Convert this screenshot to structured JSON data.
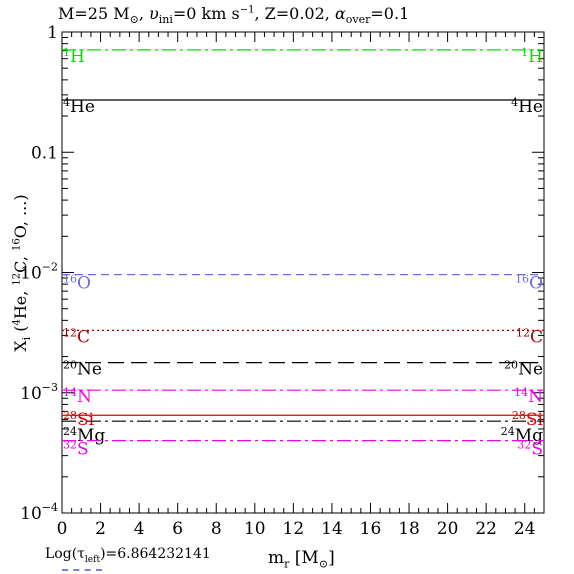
{
  "title": {
    "mass_text": "M=25 M",
    "sun_symbol": "⊙",
    "vel_text": ",  ",
    "v_symbol": "υ",
    "v_sub": "ini",
    "v_val": "=0 km s",
    "v_exp": "−1",
    "z_text": ", Z=0.02, ",
    "alpha_symbol": "α",
    "alpha_sub": "over",
    "alpha_val": "=0.1"
  },
  "footnote": {
    "prefix": "Log(τ",
    "sub": "left",
    "suffix": ")=6.864232141"
  },
  "axes": {
    "xlabel_main": "m",
    "xlabel_sub": "r",
    "xlabel_unit_open": " [M",
    "xlabel_unit_sym": "⊙",
    "xlabel_unit_close": "]",
    "ylabel_X": "X",
    "ylabel_sub": "i",
    "ylabel_open": " (",
    "ylabel_he_sup": "4",
    "ylabel_he": "He, ",
    "ylabel_c_sup": "12",
    "ylabel_c": "C, ",
    "ylabel_o_sup": "16",
    "ylabel_o": "O, ...)"
  },
  "chart_data": {
    "type": "line",
    "x_range": [
      0,
      25
    ],
    "y_range": [
      0.0001,
      1
    ],
    "y_scale": "log",
    "x_ticks": [
      "0",
      "2",
      "4",
      "6",
      "8",
      "10",
      "12",
      "14",
      "16",
      "18",
      "20",
      "22",
      "24"
    ],
    "x_tick_values": [
      0,
      2,
      4,
      6,
      8,
      10,
      12,
      14,
      16,
      18,
      20,
      22,
      24
    ],
    "y_tick_labels": [
      {
        "value": 1,
        "base": "1",
        "exp": ""
      },
      {
        "value": 0.1,
        "base": "0.1",
        "exp": ""
      },
      {
        "value": 0.01,
        "base": "10",
        "exp": "−2"
      },
      {
        "value": 0.001,
        "base": "10",
        "exp": "−3"
      },
      {
        "value": 0.0001,
        "base": "10",
        "exp": "−4"
      }
    ],
    "series": [
      {
        "name": "H",
        "mass_number": "1",
        "value": 0.71,
        "color": "#00dd00",
        "dash": "14 4 3 4",
        "label_offset": 4
      },
      {
        "name": "He",
        "mass_number": "4",
        "value": 0.272,
        "color": "#000000",
        "dash": "",
        "label_offset": 4
      },
      {
        "name": "O",
        "mass_number": "16",
        "value": 0.0096,
        "color": "#6a6ae8",
        "dash": "8 5",
        "label_offset": 6
      },
      {
        "name": "C",
        "mass_number": "12",
        "value": 0.0033,
        "color": "#aa0000",
        "dash": "2 3",
        "label_offset": 4
      },
      {
        "name": "Ne",
        "mass_number": "20",
        "value": 0.00178,
        "color": "#000000",
        "dash": "16 7",
        "label_offset": 4
      },
      {
        "name": "N",
        "mass_number": "14",
        "value": 0.00105,
        "color": "#ee00ee",
        "dash": "14 4 3 4",
        "label_offset": 4
      },
      {
        "name": "Si",
        "mass_number": "28",
        "value": 0.00065,
        "color": "#dd0000",
        "dash": "",
        "label_offset": 2
      },
      {
        "name": "Mg",
        "mass_number": "24",
        "value": 0.00058,
        "color": "#000000",
        "dash": "14 4 3 4",
        "label_offset": 12
      },
      {
        "name": "S",
        "mass_number": "32",
        "value": 0.0004,
        "color": "#ee00ee",
        "dash": "14 4 3 4",
        "label_offset": 6
      }
    ]
  }
}
